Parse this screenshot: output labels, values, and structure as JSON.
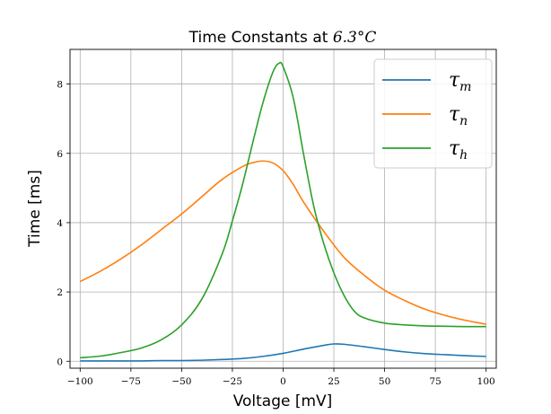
{
  "chart_data": {
    "type": "line",
    "title_prefix": "Time Constants at ",
    "title_math": "6.3°C",
    "xlabel": "Voltage [mV]",
    "ylabel": "Time [ms]",
    "xlim": [
      -105,
      105
    ],
    "ylim": [
      -0.2,
      9.0
    ],
    "xticks": [
      -100,
      -75,
      -50,
      -25,
      0,
      25,
      50,
      75,
      100
    ],
    "yticks": [
      0,
      2,
      4,
      6,
      8
    ],
    "xtick_labels": [
      "−100",
      "−75",
      "−50",
      "−25",
      "0",
      "25",
      "50",
      "75",
      "100"
    ],
    "ytick_labels": [
      "0",
      "2",
      "4",
      "6",
      "8"
    ],
    "grid": true,
    "legend_position": "top-right",
    "series": [
      {
        "name": "τm",
        "sym": "τ",
        "sub": "m",
        "color": "#1f77b4",
        "x": [
          -100,
          -90,
          -80,
          -70,
          -60,
          -50,
          -40,
          -30,
          -20,
          -10,
          0,
          10,
          20,
          25,
          30,
          40,
          50,
          60,
          70,
          80,
          90,
          100
        ],
        "y": [
          0.01,
          0.01,
          0.01,
          0.01,
          0.02,
          0.02,
          0.03,
          0.05,
          0.08,
          0.14,
          0.23,
          0.35,
          0.46,
          0.5,
          0.49,
          0.42,
          0.34,
          0.27,
          0.22,
          0.19,
          0.16,
          0.14
        ]
      },
      {
        "name": "τn",
        "sym": "τ",
        "sub": "n",
        "color": "#ff7f0e",
        "x": [
          -100,
          -90,
          -80,
          -70,
          -60,
          -50,
          -40,
          -30,
          -20,
          -15,
          -10,
          -5,
          0,
          5,
          10,
          20,
          30,
          40,
          50,
          60,
          70,
          80,
          90,
          100
        ],
        "y": [
          2.3,
          2.6,
          2.95,
          3.35,
          3.8,
          4.25,
          4.75,
          5.25,
          5.62,
          5.73,
          5.78,
          5.72,
          5.5,
          5.1,
          4.6,
          3.75,
          3.0,
          2.48,
          2.05,
          1.75,
          1.5,
          1.32,
          1.18,
          1.07
        ]
      },
      {
        "name": "τh",
        "sym": "τ",
        "sub": "h",
        "color": "#2ca02c",
        "x": [
          -100,
          -90,
          -80,
          -70,
          -60,
          -50,
          -40,
          -30,
          -25,
          -20,
          -15,
          -10,
          -5,
          -2,
          0,
          5,
          10,
          15,
          20,
          25,
          30,
          35,
          40,
          50,
          60,
          70,
          80,
          90,
          100
        ],
        "y": [
          0.1,
          0.15,
          0.25,
          0.38,
          0.62,
          1.05,
          1.8,
          3.1,
          4.05,
          5.1,
          6.3,
          7.45,
          8.35,
          8.6,
          8.5,
          7.6,
          6.0,
          4.5,
          3.4,
          2.55,
          1.9,
          1.45,
          1.25,
          1.1,
          1.05,
          1.02,
          1.01,
          1.0,
          1.0
        ]
      }
    ]
  }
}
